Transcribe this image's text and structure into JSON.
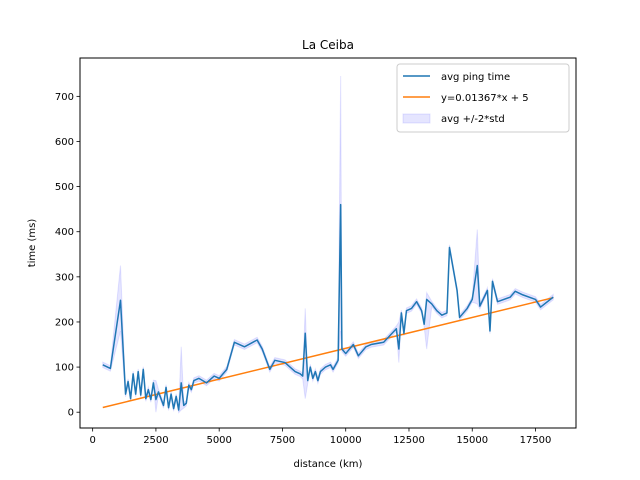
{
  "chart_data": {
    "type": "line",
    "title": "La Ceiba",
    "xlabel": "distance (km)",
    "ylabel": "time (ms)",
    "xlim": [
      -500,
      19100
    ],
    "ylim": [
      -35,
      785
    ],
    "xticks": [
      0,
      2500,
      5000,
      7500,
      10000,
      12500,
      15000,
      17500
    ],
    "yticks": [
      0,
      100,
      200,
      300,
      400,
      500,
      600,
      700
    ],
    "grid": false,
    "legend_position": "top-right",
    "colors": {
      "avg": "#1f77b4",
      "fit": "#ff7f0e",
      "band": "#0000ff"
    },
    "legend": [
      {
        "label": "avg ping time",
        "kind": "line",
        "color": "#1f77b4"
      },
      {
        "label": "y=0.01367*x + 5",
        "kind": "line",
        "color": "#ff7f0e"
      },
      {
        "label": "avg +/-2*std",
        "kind": "patch",
        "color": "#0000ff"
      }
    ],
    "series": [
      {
        "name": "avg ping time",
        "points": [
          [
            400,
            105
          ],
          [
            700,
            97
          ],
          [
            1100,
            248
          ],
          [
            1300,
            40
          ],
          [
            1400,
            68
          ],
          [
            1500,
            30
          ],
          [
            1600,
            85
          ],
          [
            1700,
            40
          ],
          [
            1800,
            90
          ],
          [
            1900,
            38
          ],
          [
            2000,
            95
          ],
          [
            2100,
            30
          ],
          [
            2200,
            50
          ],
          [
            2300,
            28
          ],
          [
            2400,
            65
          ],
          [
            2500,
            28
          ],
          [
            2600,
            45
          ],
          [
            2700,
            30
          ],
          [
            2800,
            15
          ],
          [
            2900,
            55
          ],
          [
            3000,
            10
          ],
          [
            3100,
            40
          ],
          [
            3200,
            8
          ],
          [
            3300,
            35
          ],
          [
            3400,
            5
          ],
          [
            3500,
            65
          ],
          [
            3600,
            15
          ],
          [
            3700,
            20
          ],
          [
            3800,
            60
          ],
          [
            3900,
            50
          ],
          [
            4000,
            70
          ],
          [
            4200,
            75
          ],
          [
            4500,
            65
          ],
          [
            4800,
            80
          ],
          [
            5000,
            75
          ],
          [
            5300,
            95
          ],
          [
            5600,
            155
          ],
          [
            6000,
            145
          ],
          [
            6500,
            160
          ],
          [
            6700,
            140
          ],
          [
            7000,
            95
          ],
          [
            7200,
            115
          ],
          [
            7600,
            110
          ],
          [
            8000,
            90
          ],
          [
            8200,
            85
          ],
          [
            8300,
            80
          ],
          [
            8400,
            175
          ],
          [
            8500,
            70
          ],
          [
            8600,
            100
          ],
          [
            8700,
            75
          ],
          [
            8800,
            90
          ],
          [
            8900,
            70
          ],
          [
            9000,
            90
          ],
          [
            9200,
            100
          ],
          [
            9400,
            105
          ],
          [
            9500,
            95
          ],
          [
            9700,
            115
          ],
          [
            9800,
            460
          ],
          [
            9850,
            140
          ],
          [
            10000,
            130
          ],
          [
            10300,
            150
          ],
          [
            10500,
            125
          ],
          [
            10800,
            145
          ],
          [
            11000,
            150
          ],
          [
            11500,
            155
          ],
          [
            12000,
            185
          ],
          [
            12100,
            140
          ],
          [
            12200,
            220
          ],
          [
            12300,
            175
          ],
          [
            12400,
            225
          ],
          [
            12600,
            230
          ],
          [
            12800,
            245
          ],
          [
            13000,
            225
          ],
          [
            13100,
            195
          ],
          [
            13200,
            250
          ],
          [
            13400,
            240
          ],
          [
            13600,
            225
          ],
          [
            13800,
            215
          ],
          [
            14000,
            220
          ],
          [
            14100,
            365
          ],
          [
            14400,
            270
          ],
          [
            14500,
            210
          ],
          [
            14800,
            230
          ],
          [
            15000,
            250
          ],
          [
            15200,
            325
          ],
          [
            15300,
            235
          ],
          [
            15600,
            270
          ],
          [
            15700,
            180
          ],
          [
            15800,
            290
          ],
          [
            16000,
            245
          ],
          [
            16500,
            255
          ],
          [
            16700,
            268
          ],
          [
            17000,
            260
          ],
          [
            17500,
            250
          ],
          [
            17700,
            233
          ],
          [
            18200,
            255
          ]
        ]
      },
      {
        "name": "y=0.01367*x + 5",
        "slope": 0.01367,
        "intercept": 5,
        "x_range": [
          400,
          18200
        ]
      },
      {
        "name": "avg +/-2*std",
        "spikes": [
          {
            "x": 1100,
            "low": 180,
            "high": 325
          },
          {
            "x": 3500,
            "low": 5,
            "high": 145
          },
          {
            "x": 8400,
            "low": 30,
            "high": 230
          },
          {
            "x": 9800,
            "low": 180,
            "high": 745
          },
          {
            "x": 13300,
            "low": 140,
            "high": 265
          },
          {
            "x": 15200,
            "low": 240,
            "high": 405
          },
          {
            "x": 2500,
            "low": 0,
            "high": 70
          },
          {
            "x": 12100,
            "low": 110,
            "high": 200
          }
        ]
      }
    ]
  }
}
